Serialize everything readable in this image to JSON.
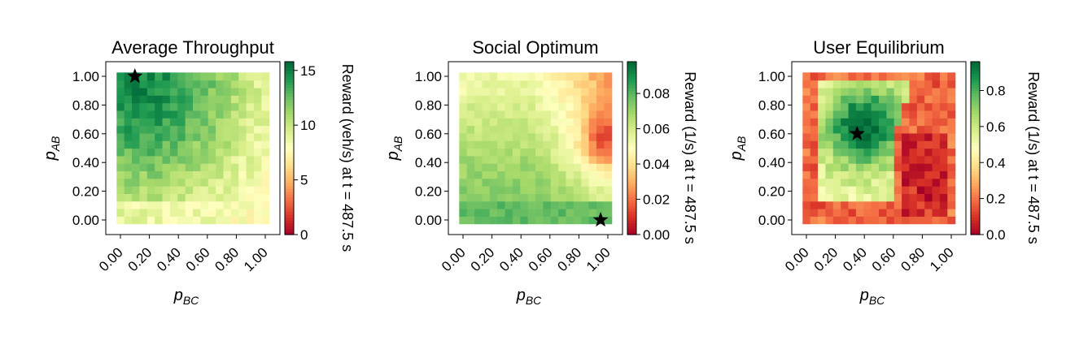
{
  "chart_data": [
    {
      "type": "heatmap",
      "title": "Average Throughput",
      "xlabel": {
        "main": "p",
        "sub": "BC"
      },
      "ylabel": {
        "main": "p",
        "sub": "AB"
      },
      "xlim": [
        0,
        1
      ],
      "ylim": [
        0,
        1
      ],
      "grid_size": 20,
      "x_ticks": [
        "0.00",
        "0.20",
        "0.40",
        "0.60",
        "0.80",
        "1.00"
      ],
      "y_ticks": [
        "0.00",
        "0.20",
        "0.40",
        "0.60",
        "0.80",
        "1.00"
      ],
      "colorbar": {
        "label": "Reward (veh/s) at t = 487.5 s",
        "min": 0,
        "max": 15.8,
        "ticks": [
          0,
          5,
          10,
          15
        ],
        "tick_labels": [
          "0",
          "5",
          "10",
          "15"
        ]
      },
      "colormap": "RdYlGn",
      "value_field": {
        "description_free_pattern": "high top-left, decreasing toward right and bottom",
        "peak": {
          "x": 0.1,
          "y": 1.0,
          "value": 15.5
        },
        "low_regions": [
          {
            "x": 0.5,
            "y": 0.0,
            "value": 7.5
          },
          {
            "x": 1.0,
            "y": 0.0,
            "value": 7.0
          }
        ]
      },
      "marker": {
        "symbol": "star",
        "x": 0.1,
        "y": 1.0
      }
    },
    {
      "type": "heatmap",
      "title": "Social Optimum",
      "xlabel": {
        "main": "p",
        "sub": "BC"
      },
      "ylabel": {
        "main": "p",
        "sub": "AB"
      },
      "xlim": [
        0,
        1
      ],
      "ylim": [
        0,
        1
      ],
      "grid_size": 20,
      "x_ticks": [
        "0.00",
        "0.20",
        "0.40",
        "0.60",
        "0.80",
        "1.00"
      ],
      "y_ticks": [
        "0.00",
        "0.20",
        "0.40",
        "0.60",
        "0.80",
        "1.00"
      ],
      "colorbar": {
        "label": "Reward (1/s) at t = 487.5 s",
        "min": 0,
        "max": 0.098,
        "ticks": [
          0,
          0.02,
          0.04,
          0.06,
          0.08
        ],
        "tick_labels": [
          "0.00",
          "0.02",
          "0.04",
          "0.06",
          "0.08"
        ]
      },
      "colormap": "RdYlGn",
      "marker": {
        "symbol": "star",
        "x": 0.95,
        "y": 0.0
      }
    },
    {
      "type": "heatmap",
      "title": "User Equilibrium",
      "xlabel": {
        "main": "p",
        "sub": "BC"
      },
      "ylabel": {
        "main": "p",
        "sub": "AB"
      },
      "xlim": [
        0,
        1
      ],
      "ylim": [
        0,
        1
      ],
      "grid_size": 20,
      "x_ticks": [
        "0.00",
        "0.20",
        "0.40",
        "0.60",
        "0.80",
        "1.00"
      ],
      "y_ticks": [
        "0.00",
        "0.20",
        "0.40",
        "0.60",
        "0.80",
        "1.00"
      ],
      "colorbar": {
        "label": "Reward (1/s) at t = 487.5 s",
        "min": 0,
        "max": 0.96,
        "ticks": [
          0,
          0.2,
          0.4,
          0.6,
          0.8
        ],
        "tick_labels": [
          "0.0",
          "0.2",
          "0.4",
          "0.6",
          "0.8"
        ]
      },
      "colormap": "RdYlGn",
      "marker": {
        "symbol": "star",
        "x": 0.35,
        "y": 0.6
      }
    }
  ]
}
